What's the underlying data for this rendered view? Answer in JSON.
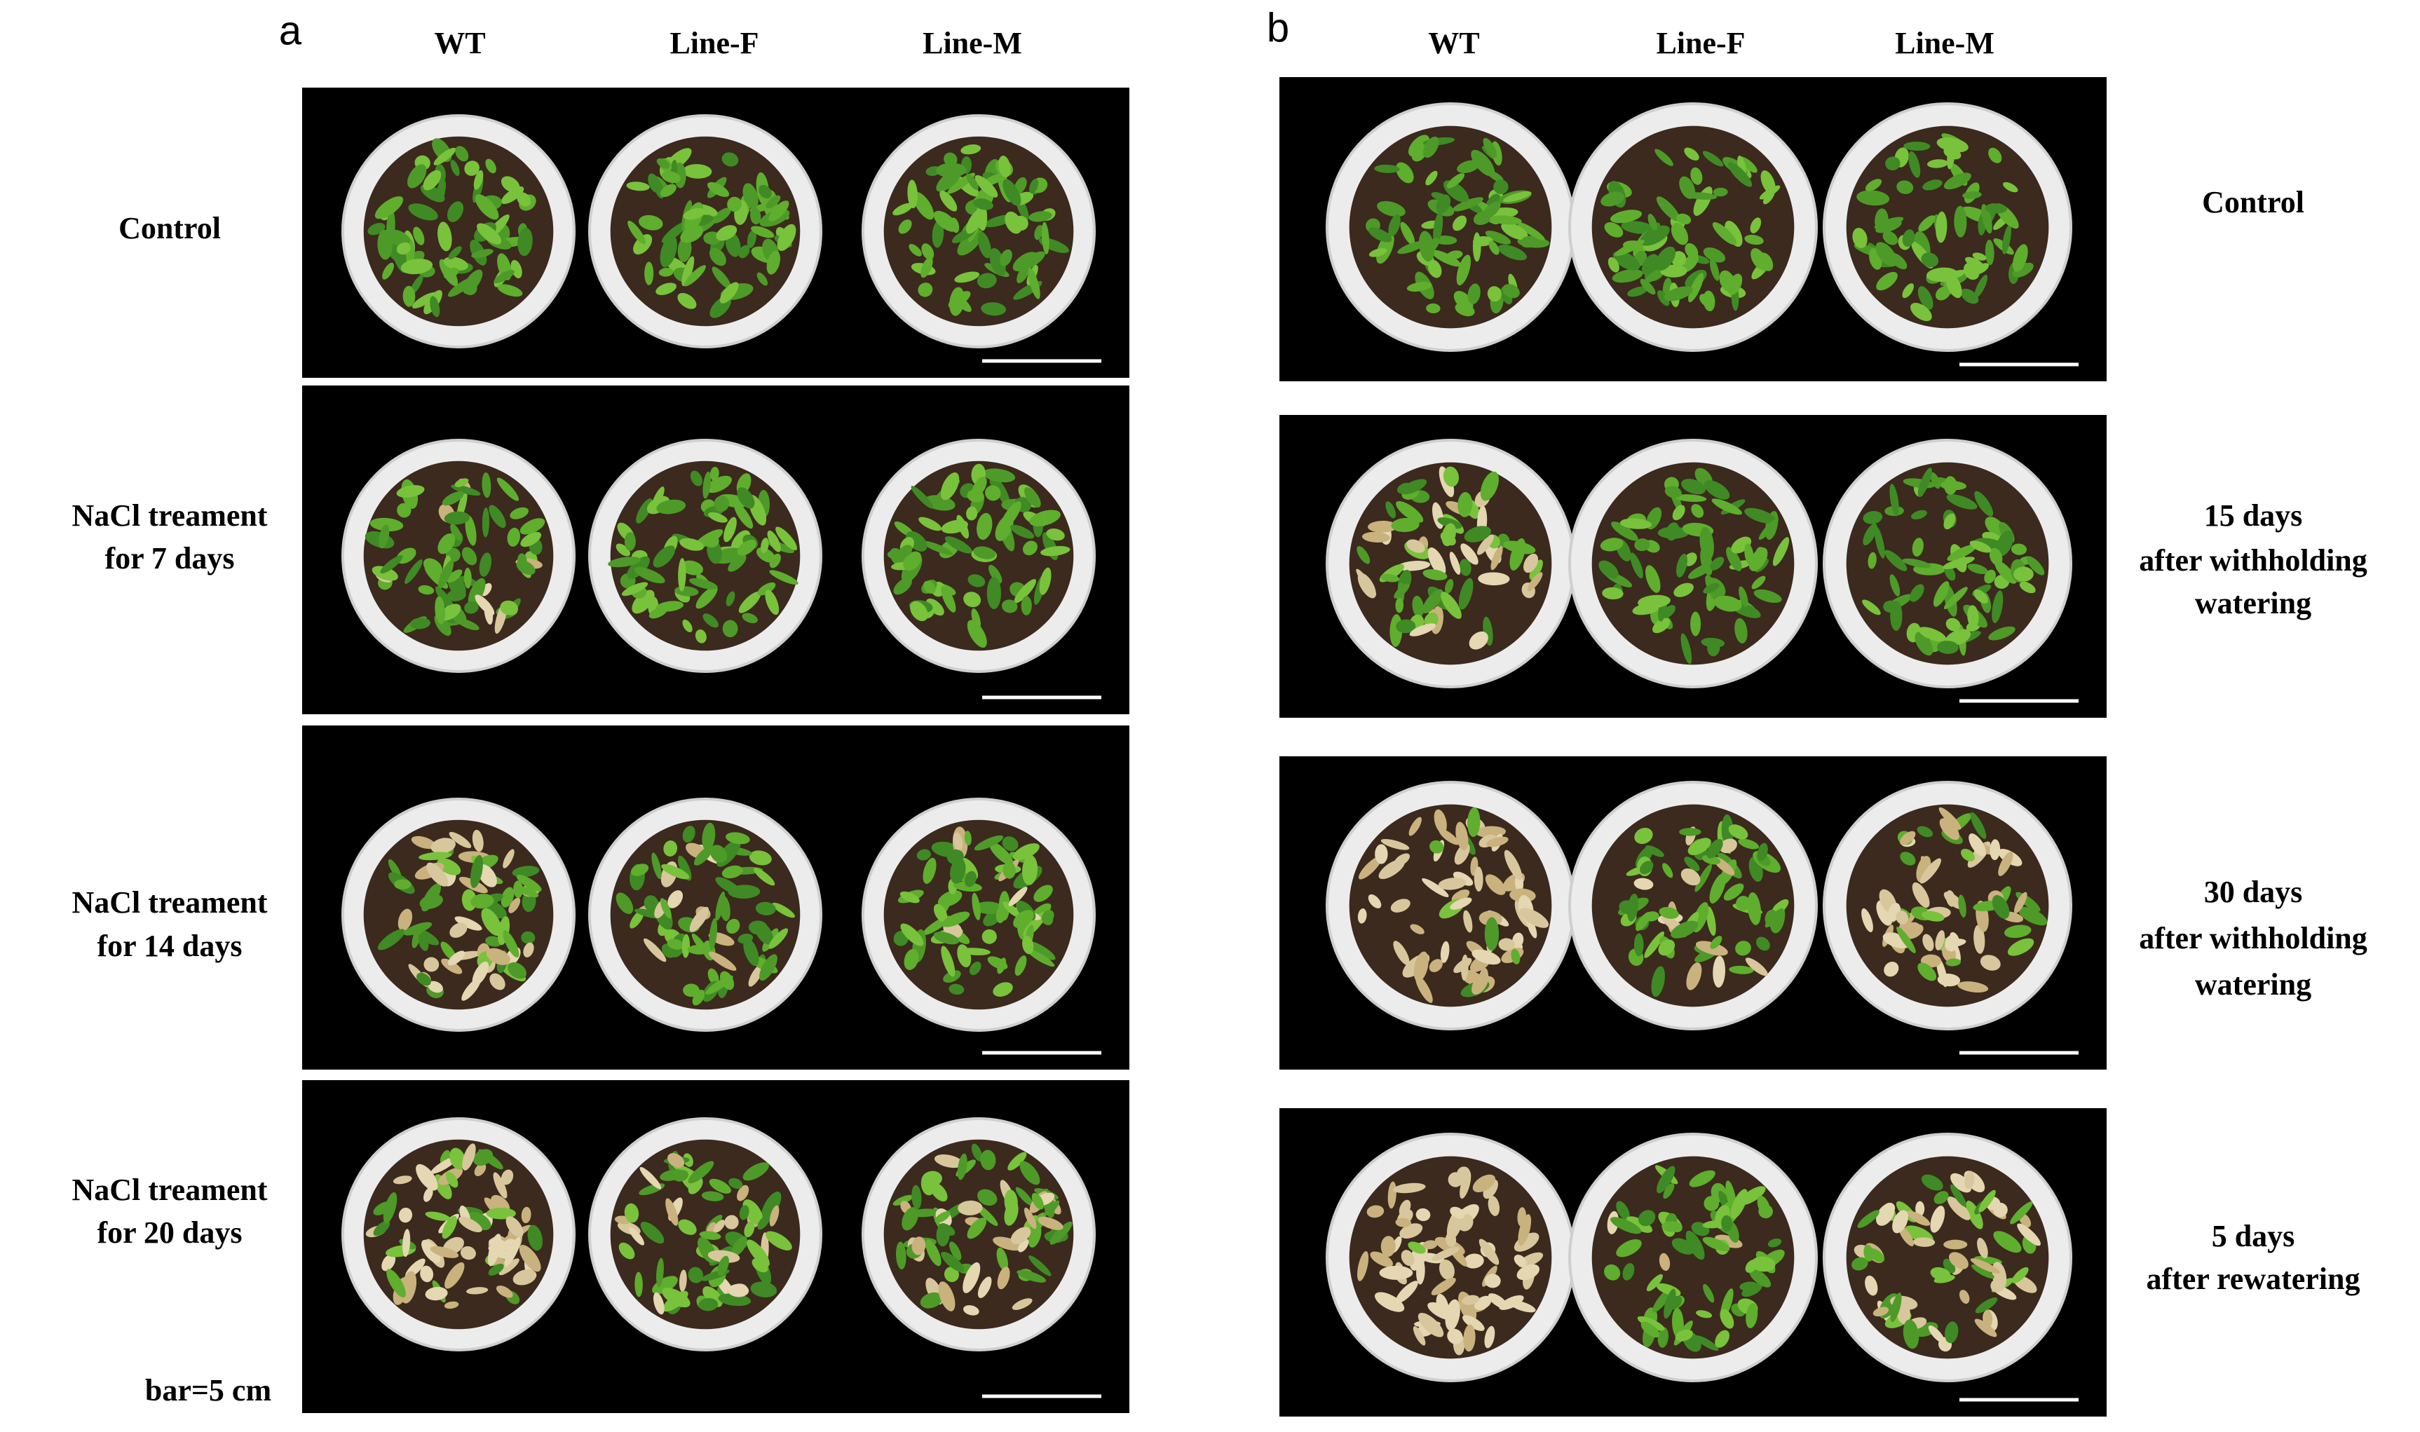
{
  "panels": [
    {
      "label": "a",
      "columns": [
        "WT",
        "Line-F",
        "Line-M"
      ],
      "rows": [
        [
          "Control"
        ],
        [
          "NaCl treament",
          "for 7 days"
        ],
        [
          "NaCl treament",
          "for 14 days"
        ],
        [
          "NaCl treament",
          "for 20 days"
        ]
      ],
      "note": "bar=5 cm"
    },
    {
      "label": "b",
      "columns": [
        "WT",
        "Line-F",
        "Line-M"
      ],
      "rows": [
        [
          "Control"
        ],
        [
          "15 days",
          "after withholding",
          "watering"
        ],
        [
          "30 days",
          "after withholding",
          "watering"
        ],
        [
          "5 days",
          "after rewatering"
        ]
      ]
    }
  ]
}
